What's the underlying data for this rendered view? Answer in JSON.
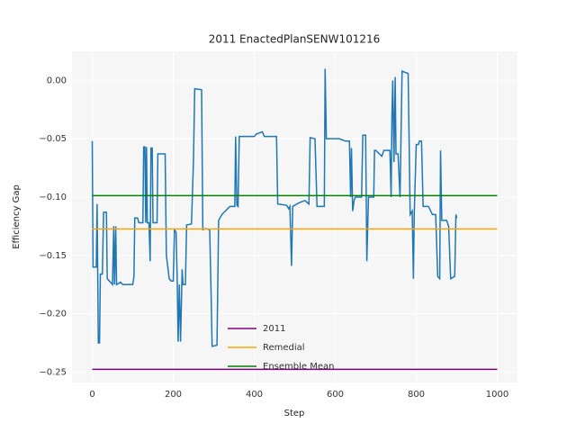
{
  "chart_data": {
    "type": "line",
    "title": "2011 EnactedPlanSENW101216",
    "x_label": "Step",
    "y_label": "Efficiency Gap",
    "xlim": [
      -50,
      1050
    ],
    "xticks": [
      0,
      200,
      400,
      600,
      800,
      1000
    ],
    "ylim": [
      -0.259,
      0.025
    ],
    "yticks": [
      {
        "value": 0,
        "label": "0.00"
      },
      {
        "value": -0.05,
        "label": "−0.05"
      },
      {
        "value": -0.1,
        "label": "−0.10"
      },
      {
        "value": -0.15,
        "label": "−0.15"
      },
      {
        "value": -0.2,
        "label": "−0.20"
      },
      {
        "value": -0.25,
        "label": "−0.25"
      }
    ],
    "grid": true,
    "legend": "lower center",
    "series": [
      {
        "color": "#1f77b4",
        "x": [
          0,
          2,
          10,
          12,
          15,
          18,
          20,
          25,
          28,
          35,
          37,
          45,
          50,
          53,
          55,
          58,
          60,
          70,
          75,
          100,
          103,
          105,
          112,
          115,
          125,
          127,
          130,
          132,
          134,
          136,
          140,
          143,
          145,
          148,
          150,
          160,
          162,
          180,
          183,
          190,
          195,
          200,
          203,
          207,
          210,
          212,
          215,
          218,
          222,
          224,
          230,
          233,
          245,
          250,
          253,
          270,
          273,
          280,
          290,
          293,
          296,
          308,
          312,
          320,
          340,
          352,
          354,
          357,
          360,
          363,
          400,
          405,
          420,
          425,
          445,
          455,
          458,
          480,
          485,
          488,
          492,
          495,
          500,
          510,
          525,
          535,
          538,
          550,
          555,
          560,
          573,
          575,
          578,
          610,
          625,
          635,
          638,
          640,
          643,
          647,
          650,
          665,
          668,
          675,
          678,
          682,
          695,
          697,
          700,
          715,
          720,
          735,
          738,
          740,
          742,
          745,
          748,
          750,
          755,
          760,
          765,
          780,
          785,
          790,
          793,
          795,
          800,
          805,
          808,
          813,
          817,
          830,
          840,
          848,
          853,
          858,
          860,
          863,
          875,
          880,
          885,
          895,
          898,
          900
        ],
        "values": [
          -0.052,
          -0.16,
          -0.16,
          -0.106,
          -0.225,
          -0.225,
          -0.166,
          -0.166,
          -0.113,
          -0.113,
          -0.17,
          -0.173,
          -0.175,
          -0.125,
          -0.175,
          -0.125,
          -0.175,
          -0.173,
          -0.175,
          -0.175,
          -0.168,
          -0.118,
          -0.118,
          -0.122,
          -0.122,
          -0.057,
          -0.057,
          -0.122,
          -0.057,
          -0.122,
          -0.122,
          -0.155,
          -0.058,
          -0.058,
          -0.122,
          -0.122,
          -0.063,
          -0.063,
          -0.15,
          -0.17,
          -0.172,
          -0.172,
          -0.128,
          -0.13,
          -0.175,
          -0.224,
          -0.175,
          -0.224,
          -0.162,
          -0.175,
          -0.175,
          -0.124,
          -0.123,
          -0.068,
          -0.007,
          -0.008,
          -0.128,
          -0.127,
          -0.128,
          -0.175,
          -0.228,
          -0.227,
          -0.12,
          -0.115,
          -0.108,
          -0.108,
          -0.048,
          -0.107,
          -0.108,
          -0.048,
          -0.048,
          -0.046,
          -0.044,
          -0.048,
          -0.048,
          -0.048,
          -0.106,
          -0.107,
          -0.11,
          -0.108,
          -0.159,
          -0.108,
          -0.107,
          -0.105,
          -0.103,
          -0.106,
          -0.049,
          -0.05,
          -0.108,
          -0.108,
          -0.108,
          0.01,
          -0.05,
          -0.05,
          -0.052,
          -0.052,
          -0.1,
          -0.058,
          -0.112,
          -0.102,
          -0.1,
          -0.1,
          -0.047,
          -0.047,
          -0.155,
          -0.1,
          -0.1,
          -0.06,
          -0.06,
          -0.065,
          -0.06,
          -0.06,
          -0.1,
          -0.03,
          0.0,
          -0.07,
          0.003,
          -0.063,
          -0.063,
          -0.1,
          0.008,
          0.006,
          -0.115,
          -0.112,
          -0.17,
          -0.115,
          -0.055,
          -0.055,
          -0.052,
          -0.052,
          -0.108,
          -0.108,
          -0.115,
          -0.115,
          -0.168,
          -0.17,
          -0.06,
          -0.12,
          -0.12,
          -0.125,
          -0.17,
          -0.168,
          -0.115,
          -0.118
        ]
      },
      {
        "name": "2011",
        "color": "#800080",
        "x": [
          0,
          1000
        ],
        "values": [
          -0.2477,
          -0.2477
        ]
      },
      {
        "name": "Remedial",
        "color": "#ffa500",
        "x": [
          0,
          1000
        ],
        "values": [
          -0.1273,
          -0.1273
        ]
      },
      {
        "name": "Ensemble Mean",
        "color": "#008000",
        "x": [
          0,
          1000
        ],
        "values": [
          -0.0988,
          -0.0988
        ]
      }
    ]
  }
}
